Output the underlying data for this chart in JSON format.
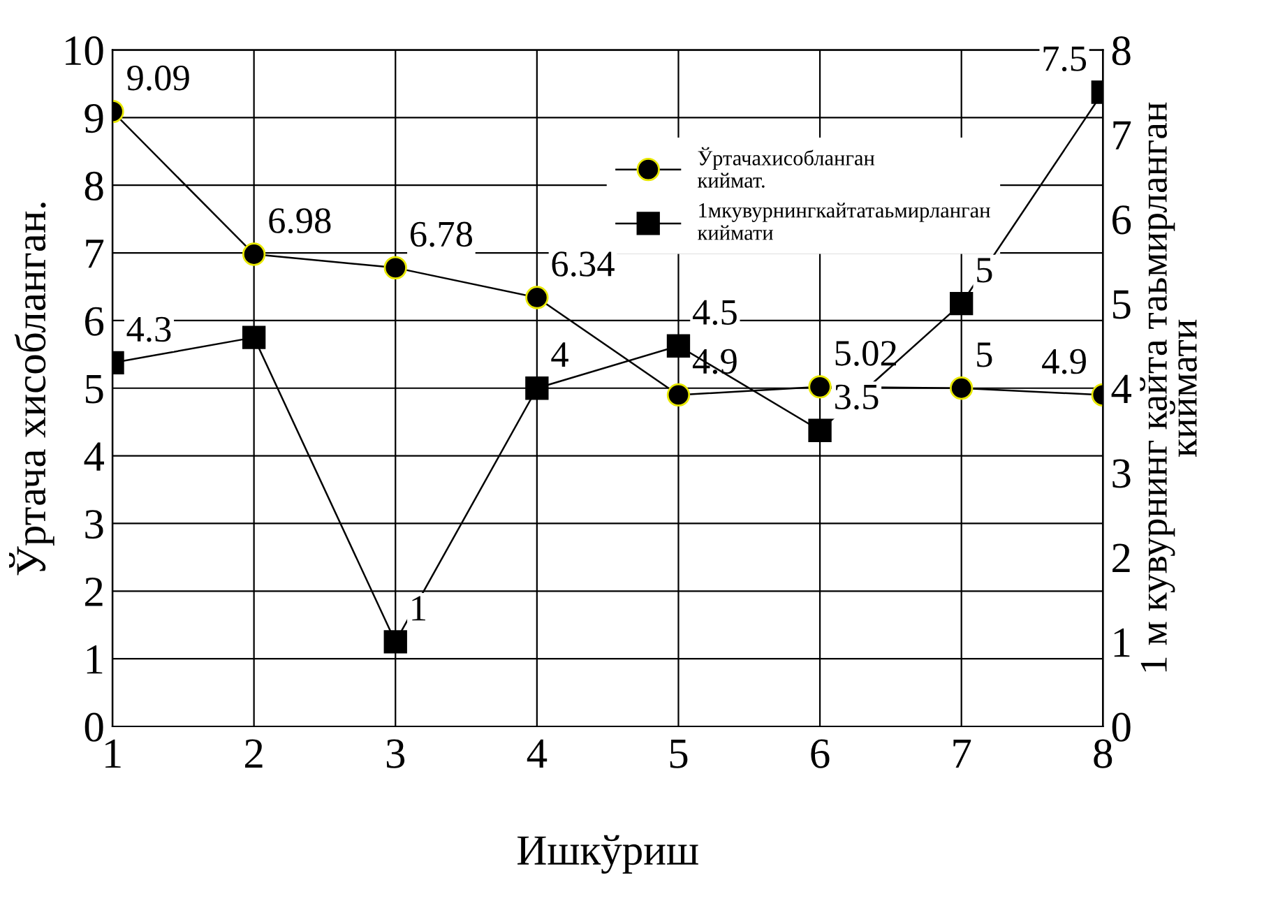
{
  "chart_data": {
    "type": "line",
    "xlabel": "Ишкўриш",
    "ylabel": "Ўртача хисобланган.",
    "y2label": "1 м кувурнинг кайта таьмирланган киймати",
    "x": [
      1,
      2,
      3,
      4,
      5,
      6,
      7,
      8
    ],
    "xlim": [
      1,
      8
    ],
    "xticks": [
      1,
      2,
      3,
      4,
      5,
      6,
      7,
      8
    ],
    "ylim": [
      0,
      10
    ],
    "yticks": [
      0,
      1,
      2,
      3,
      4,
      5,
      6,
      7,
      8,
      9,
      10
    ],
    "y2lim": [
      0,
      8
    ],
    "y2ticks": [
      0,
      1,
      2,
      3,
      4,
      5,
      6,
      7,
      8
    ],
    "grid": true,
    "legend": "top right",
    "series": [
      {
        "name": "Ўртачахисобланган киймат.",
        "color": "#000000",
        "marker": "circle",
        "values": [
          9.09,
          6.98,
          6.78,
          6.34,
          4.9,
          5.02,
          5,
          4.9
        ],
        "value_labels": [
          "9.09",
          "6.98",
          "6.78",
          "6.34",
          "4.9",
          "5.02",
          "5",
          "4.9"
        ]
      },
      {
        "name": "1мкувурнингкайтатаьмирланган киймати",
        "color": "#000000",
        "marker": "square",
        "axis": "y2",
        "values": [
          4.3,
          4.6,
          1,
          4,
          4.5,
          3.5,
          5,
          7.5
        ],
        "value_labels": [
          "4.3",
          null,
          "1",
          "4",
          "4.5",
          "3.5",
          "5",
          "7.5"
        ]
      }
    ]
  }
}
